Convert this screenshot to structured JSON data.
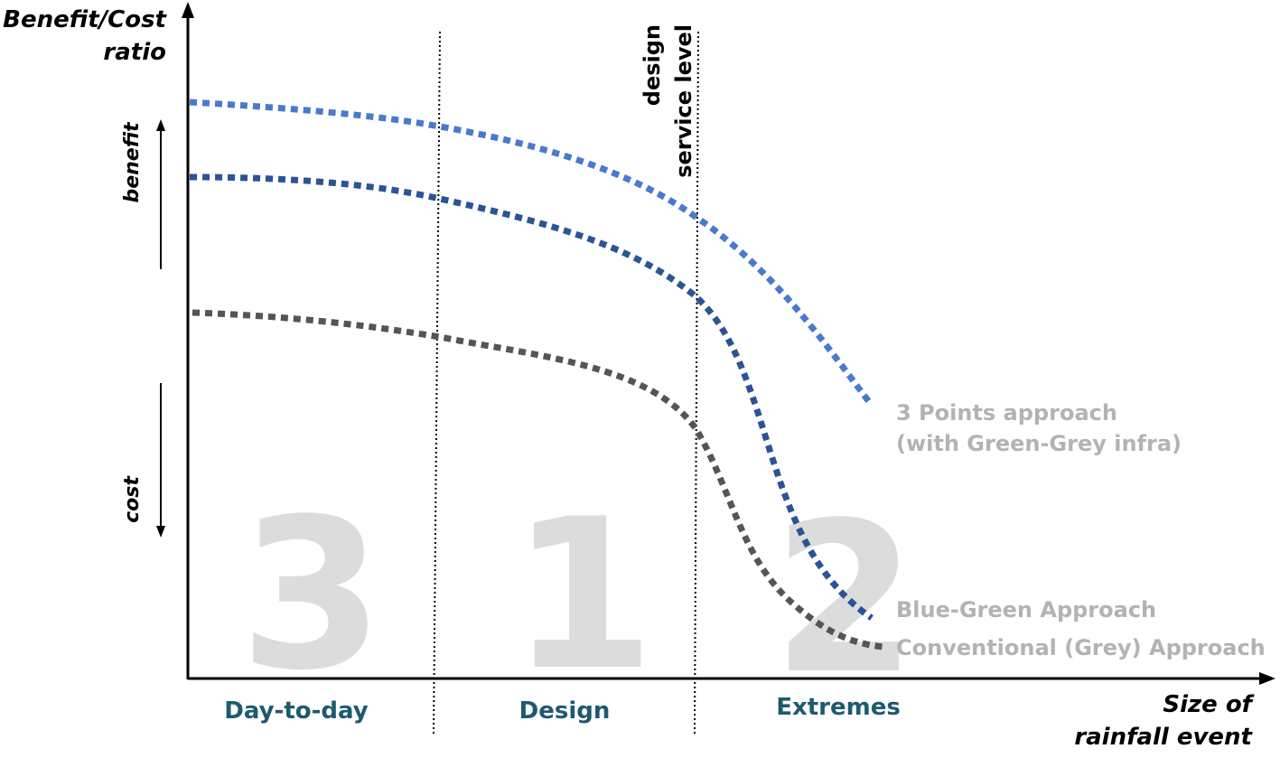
{
  "y_axis_title": [
    "Benefit/Cost",
    "ratio"
  ],
  "x_axis_title": [
    "Size of",
    "rainfall event"
  ],
  "benefit_label": "benefit",
  "cost_label": "cost",
  "design_marker_label": [
    "design",
    "service level"
  ],
  "zones": [
    {
      "label": "Day-to-day",
      "number": "3"
    },
    {
      "label": "Design",
      "number": "1"
    },
    {
      "label": "Extremes",
      "number": "2"
    }
  ],
  "series": [
    {
      "name": "3 Points approach",
      "name_line2": "(with Green-Grey infra)",
      "color": "#4a7acc"
    },
    {
      "name": "Blue-Green Approach",
      "color": "#2b5495"
    },
    {
      "name": "Conventional (Grey) Approach",
      "color": "#555555"
    }
  ],
  "colors": {
    "axis": "#000000",
    "zone_text": "#1e5a6e",
    "big_number": "#dcdcdc",
    "series_label": "#b3b3b3"
  }
}
